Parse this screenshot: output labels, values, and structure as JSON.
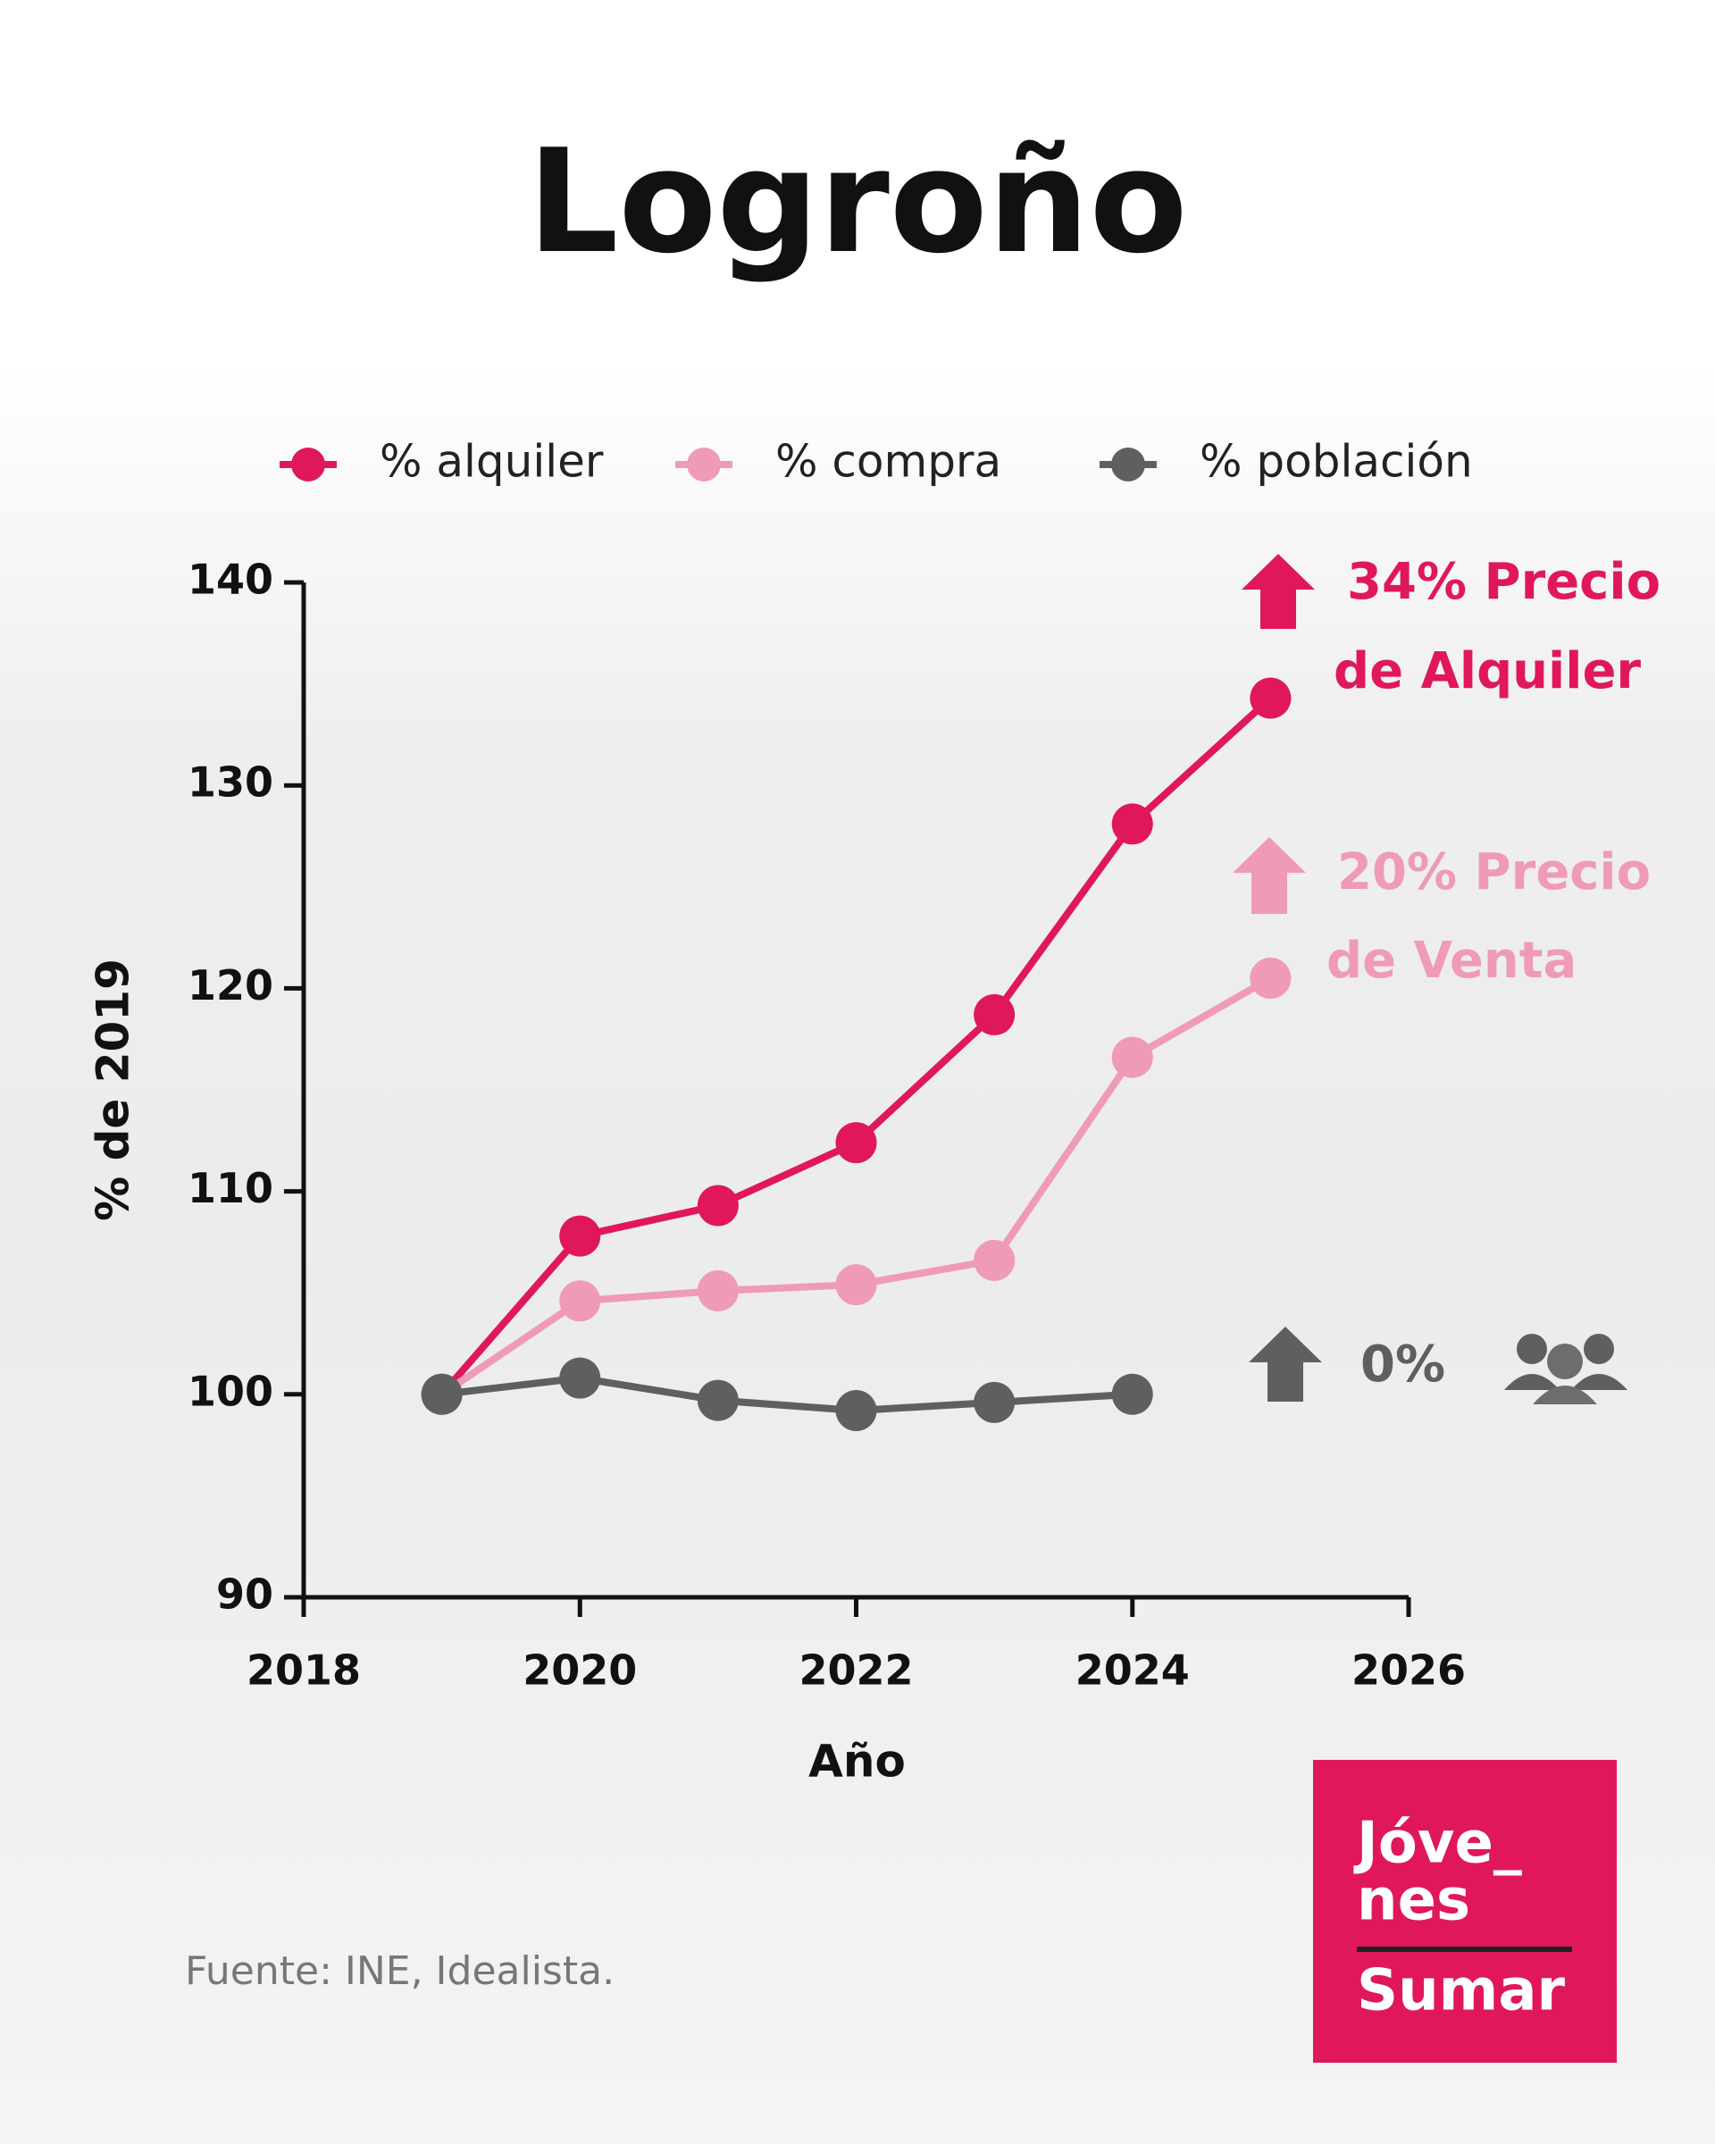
{
  "chart_data": {
    "type": "line",
    "title": "Logroño",
    "x": [
      2019,
      2020,
      2021,
      2022,
      2023,
      2024,
      2025
    ],
    "series": [
      {
        "name": "% alquiler",
        "color": "#e0185a",
        "values": [
          100,
          107.8,
          109.3,
          112.4,
          118.7,
          128.1,
          134.3
        ],
        "annotation": [
          "34% Precio",
          "de Alquiler"
        ]
      },
      {
        "name": "% compra",
        "color": "#ef9ab8",
        "values": [
          100,
          104.6,
          105.1,
          105.4,
          106.6,
          116.6,
          120.5
        ],
        "annotation": [
          "20% Precio",
          "de Venta"
        ]
      },
      {
        "name": "% población",
        "color": "#5f5f5f",
        "values": [
          100,
          100.8,
          99.7,
          99.2,
          99.6,
          100,
          null
        ],
        "annotation": [
          "0%"
        ]
      }
    ],
    "xlim": [
      2018,
      2026
    ],
    "xticks": [
      2018,
      2020,
      2022,
      2024,
      2026
    ],
    "ylim": [
      90,
      140
    ],
    "yticks": [
      90,
      100,
      110,
      120,
      130,
      140
    ],
    "xlabel": "Año",
    "ylabel": "% de 2019",
    "source": "Fuente: INE, Idealista.",
    "logo": [
      "Jóve_",
      "nes",
      "Sumar"
    ]
  }
}
